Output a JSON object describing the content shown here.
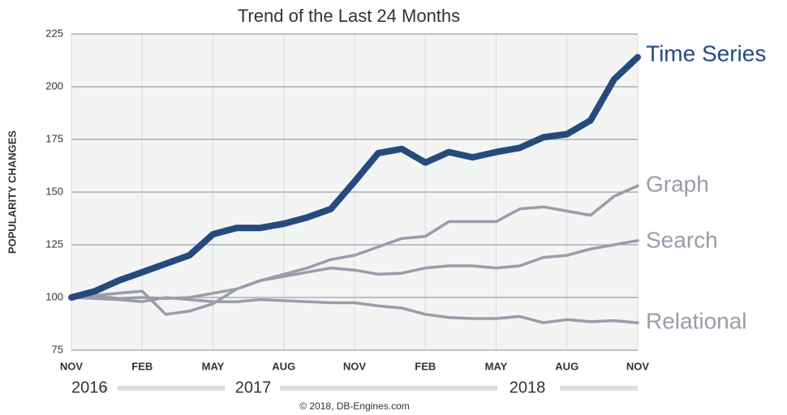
{
  "chart_data": {
    "type": "line",
    "title": "Trend of the Last 24 Months",
    "y_label": "POPULARITY CHANGES",
    "categories": [
      "NOV",
      null,
      null,
      "FEB",
      null,
      null,
      "MAY",
      null,
      null,
      "AUG",
      null,
      null,
      "NOV",
      null,
      null,
      "FEB",
      null,
      null,
      "MAY",
      null,
      null,
      "AUG",
      null,
      null,
      "NOV"
    ],
    "years": [
      "2016",
      "2017",
      "2018"
    ],
    "footer": "© 2018, DB-Engines.com",
    "ylim": [
      75,
      225
    ],
    "yticks": [
      75,
      100,
      125,
      150,
      175,
      200,
      225
    ],
    "grid": true,
    "series": [
      {
        "name": "Time Series",
        "color": "#264a7c",
        "values": [
          100,
          103,
          108,
          112,
          116,
          120,
          130,
          133,
          133,
          135,
          138,
          142,
          155,
          168.5,
          170.5,
          164,
          169,
          166.5,
          169,
          171,
          176,
          177.5,
          184,
          203.5,
          214
        ]
      },
      {
        "name": "Graph",
        "color": "#9b9caa",
        "values": [
          100,
          101,
          99.5,
          100,
          99.5,
          100,
          102,
          104,
          108,
          111,
          114,
          118,
          120,
          124,
          128,
          129,
          136,
          136,
          136,
          142,
          143,
          141,
          139,
          148,
          153
        ]
      },
      {
        "name": "Search",
        "color": "#9b9caa",
        "values": [
          100,
          101,
          102,
          103,
          92,
          93.5,
          97,
          104,
          108,
          110,
          112,
          114,
          113,
          111,
          111.5,
          114,
          115,
          115,
          114,
          115,
          119,
          120,
          123,
          125,
          127
        ]
      },
      {
        "name": "Relational",
        "color": "#9b9caa",
        "values": [
          100,
          99.5,
          99,
          98,
          100,
          99,
          98,
          98,
          99,
          98.5,
          98,
          97.5,
          97.5,
          96,
          95,
          92,
          90.5,
          90,
          90,
          91,
          88,
          89.5,
          88.5,
          89,
          88
        ]
      }
    ]
  }
}
